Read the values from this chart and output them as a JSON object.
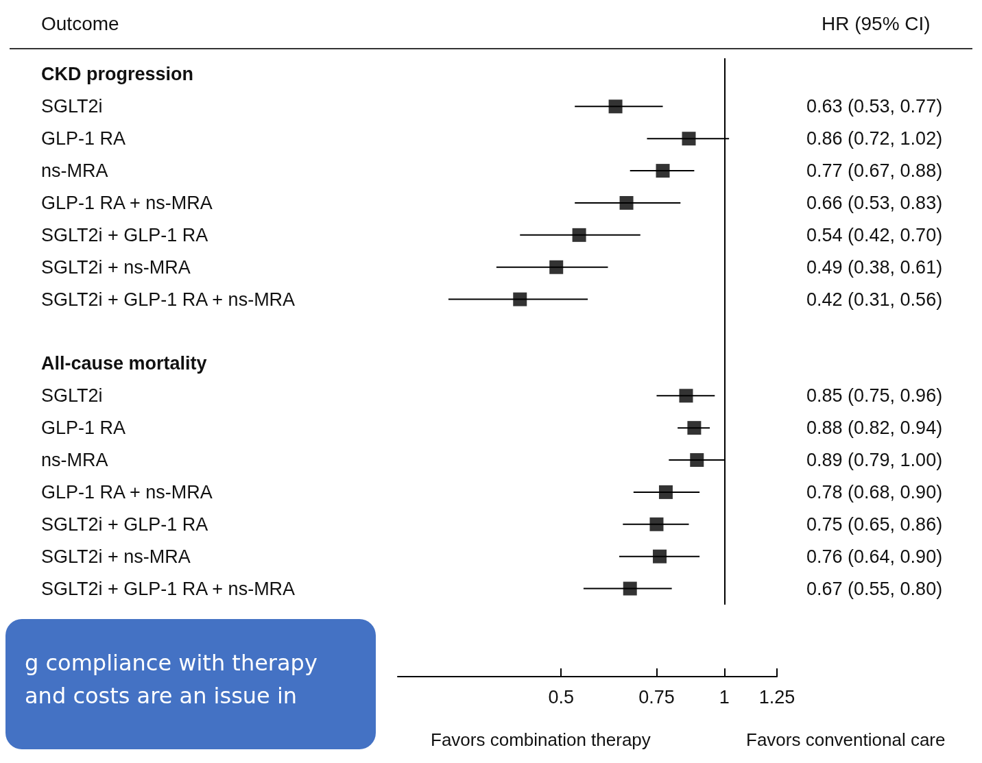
{
  "chart_data": {
    "type": "scatter",
    "orientation": "horizontal",
    "ylabel": "Outcome",
    "y2label": "HR (95% CI)",
    "categories": [
      "CKD progression",
      "SGLT2i",
      "GLP-1 RA",
      "ns-MRA",
      "GLP-1 RA + ns-MRA",
      "SGLT2i + GLP-1 RA",
      "SGLT2i + ns-MRA",
      "SGLT2i + GLP-1 RA + ns-MRA",
      null,
      "All-cause mortality",
      "SGLT2i",
      "GLP-1 RA",
      "ns-MRA",
      "GLP-1 RA + ns-MRA",
      "SGLT2i + GLP-1 RA",
      "SGLT2i + ns-MRA",
      "SGLT2i + GLP-1 RA + ns-MRA"
    ],
    "values": [
      null,
      0.63,
      0.86,
      0.77,
      0.66,
      0.54,
      0.49,
      0.42,
      null,
      null,
      0.85,
      0.88,
      0.89,
      0.78,
      0.75,
      0.76,
      0.67
    ],
    "errors": [
      null,
      [
        0.53,
        0.77
      ],
      [
        0.72,
        1.02
      ],
      [
        0.67,
        0.88
      ],
      [
        0.53,
        0.83
      ],
      [
        0.42,
        0.7
      ],
      [
        0.38,
        0.61
      ],
      [
        0.31,
        0.56
      ],
      null,
      null,
      [
        0.75,
        0.96
      ],
      [
        0.82,
        0.94
      ],
      [
        0.79,
        1.0
      ],
      [
        0.68,
        0.9
      ],
      [
        0.65,
        0.86
      ],
      [
        0.64,
        0.9
      ],
      [
        0.55,
        0.8
      ]
    ],
    "value_labels": [
      null,
      "0.63 (0.53, 0.77)",
      "0.86 (0.72, 1.02)",
      "0.77 (0.67, 0.88)",
      "0.66 (0.53, 0.83)",
      "0.54 (0.42, 0.70)",
      "0.49 (0.38, 0.61)",
      "0.42 (0.31, 0.56)",
      null,
      null,
      "0.85 (0.75, 0.96)",
      "0.88 (0.82, 0.94)",
      "0.89 (0.79, 1.00)",
      "0.78 (0.68, 0.90)",
      "0.75 (0.65, 0.86)",
      "0.76 (0.64, 0.90)",
      "0.67 (0.55, 0.80)"
    ],
    "color": "#000000",
    "marker": "square",
    "log": "x",
    "xlim": [
      0.25,
      1.25
    ],
    "xticks": [
      0.5,
      0.75,
      1,
      1.25
    ],
    "grid": false,
    "legend": false,
    "ref_lines": [
      {
        "axis": "x",
        "value": 1,
        "color": "#000000"
      }
    ],
    "annotations": [
      "Favors combination therapy",
      "Favors conventional care",
      "g compliance with therapy and costs are an issue in"
    ]
  }
}
